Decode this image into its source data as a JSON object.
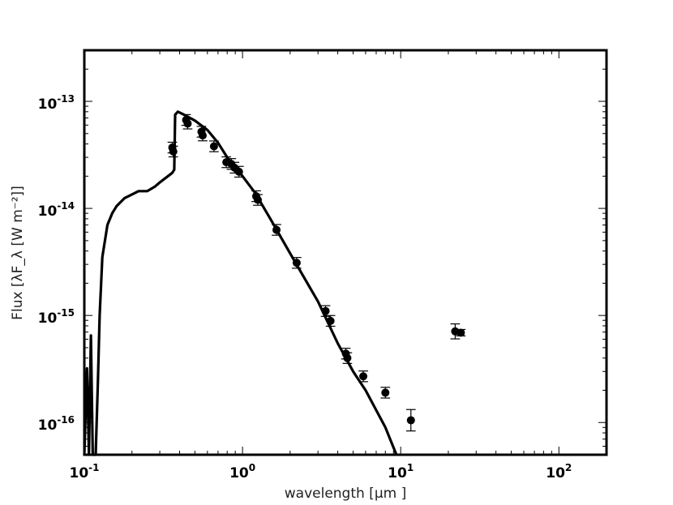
{
  "chart_data": {
    "type": "scatter",
    "title": "",
    "xlabel": "wavelength [μm ]",
    "ylabel": "Flux [λF_λ [W  m⁻²]]",
    "xscale": "log",
    "yscale": "log",
    "xlim": [
      0.1,
      200
    ],
    "ylim": [
      5e-17,
      3e-13
    ],
    "grid": false,
    "x_ticks": [
      {
        "value": 0.1,
        "base": "10",
        "exp": "-1"
      },
      {
        "value": 1,
        "base": "10",
        "exp": "0"
      },
      {
        "value": 10,
        "base": "10",
        "exp": "1"
      },
      {
        "value": 100,
        "base": "10",
        "exp": "2"
      }
    ],
    "y_ticks": [
      {
        "value": 1e-13,
        "base": "10",
        "exp": "-13"
      },
      {
        "value": 1e-14,
        "base": "10",
        "exp": "-14"
      },
      {
        "value": 1e-15,
        "base": "10",
        "exp": "-15"
      },
      {
        "value": 1e-16,
        "base": "10",
        "exp": "-16"
      }
    ],
    "series": [
      {
        "kind": "model-line",
        "color": "#000000",
        "points": [
          [
            0.1,
            5e-17
          ],
          [
            0.104,
            3.2e-16
          ],
          [
            0.107,
            5e-17
          ],
          [
            0.11,
            6.5e-16
          ],
          [
            0.113,
            5e-17
          ],
          [
            0.118,
            5e-17
          ],
          [
            0.122,
            2.5e-16
          ],
          [
            0.125,
            1e-15
          ],
          [
            0.13,
            3.5e-15
          ],
          [
            0.14,
            7e-15
          ],
          [
            0.15,
            9e-15
          ],
          [
            0.16,
            1.05e-14
          ],
          [
            0.18,
            1.25e-14
          ],
          [
            0.2,
            1.35e-14
          ],
          [
            0.22,
            1.45e-14
          ],
          [
            0.25,
            1.45e-14
          ],
          [
            0.28,
            1.6e-14
          ],
          [
            0.3,
            1.75e-14
          ],
          [
            0.33,
            1.95e-14
          ],
          [
            0.36,
            2.15e-14
          ],
          [
            0.37,
            2.3e-14
          ],
          [
            0.375,
            7.5e-14
          ],
          [
            0.39,
            8e-14
          ],
          [
            0.42,
            7.6e-14
          ],
          [
            0.5,
            6.6e-14
          ],
          [
            0.6,
            5.4e-14
          ],
          [
            0.7,
            4.1e-14
          ],
          [
            0.8,
            3e-14
          ],
          [
            1.0,
            2e-14
          ],
          [
            1.2,
            1.4e-14
          ],
          [
            1.5,
            8e-15
          ],
          [
            2.0,
            3.8e-15
          ],
          [
            3.0,
            1.35e-15
          ],
          [
            4.0,
            5.5e-16
          ],
          [
            5.0,
            3e-16
          ],
          [
            6.0,
            2e-16
          ],
          [
            8.0,
            9e-17
          ],
          [
            9.4,
            5e-17
          ]
        ]
      },
      {
        "kind": "photometry",
        "color": "#000000",
        "points": [
          {
            "x": 0.36,
            "y": 3.7e-14,
            "yerr": 0.05,
            "xerr": 0.03
          },
          {
            "x": 0.365,
            "y": 3.4e-14,
            "yerr": 0.05,
            "xerr": 0.03
          },
          {
            "x": 0.44,
            "y": 6.7e-14,
            "yerr": 0.05,
            "xerr": 0.03
          },
          {
            "x": 0.45,
            "y": 6.2e-14,
            "yerr": 0.05,
            "xerr": 0.03
          },
          {
            "x": 0.55,
            "y": 5.2e-14,
            "yerr": 0.05,
            "xerr": 0.03
          },
          {
            "x": 0.56,
            "y": 4.8e-14,
            "yerr": 0.05,
            "xerr": 0.03
          },
          {
            "x": 0.66,
            "y": 3.8e-14,
            "yerr": 0.05,
            "xerr": 0.03
          },
          {
            "x": 0.79,
            "y": 2.7e-14,
            "yerr": 0.05,
            "xerr": 0.03
          },
          {
            "x": 0.85,
            "y": 2.6e-14,
            "yerr": 0.05,
            "xerr": 0.03
          },
          {
            "x": 0.89,
            "y": 2.4e-14,
            "yerr": 0.05,
            "xerr": 0.03
          },
          {
            "x": 0.95,
            "y": 2.2e-14,
            "yerr": 0.05,
            "xerr": 0.03
          },
          {
            "x": 1.22,
            "y": 1.3e-14,
            "yerr": 0.05,
            "xerr": 0.03
          },
          {
            "x": 1.25,
            "y": 1.2e-14,
            "yerr": 0.05,
            "xerr": 0.03
          },
          {
            "x": 1.64,
            "y": 6.3e-15,
            "yerr": 0.05,
            "xerr": 0.03
          },
          {
            "x": 2.2,
            "y": 3.1e-15,
            "yerr": 0.05,
            "xerr": 0.03
          },
          {
            "x": 3.35,
            "y": 1.1e-15,
            "yerr": 0.05,
            "xerr": 0.03
          },
          {
            "x": 3.6,
            "y": 8.9e-16,
            "yerr": 0.05,
            "xerr": 0.03
          },
          {
            "x": 4.5,
            "y": 4.4e-16,
            "yerr": 0.05,
            "xerr": 0.03
          },
          {
            "x": 4.6,
            "y": 4e-16,
            "yerr": 0.05,
            "xerr": 0.03
          },
          {
            "x": 5.8,
            "y": 2.7e-16,
            "yerr": 0.05,
            "xerr": 0.03
          },
          {
            "x": 8.0,
            "y": 1.9e-16,
            "yerr": 0.05,
            "xerr": 0.03
          },
          {
            "x": 11.6,
            "y": 1.05e-16,
            "yerr": 0.1,
            "xerr": 0.03
          },
          {
            "x": 22.1,
            "y": 7.1e-16,
            "yerr": 0.07,
            "xerr": 0.03
          },
          {
            "x": 24.0,
            "y": 6.9e-16,
            "yerr": 0.03,
            "xerr": 0.03
          }
        ]
      }
    ]
  }
}
